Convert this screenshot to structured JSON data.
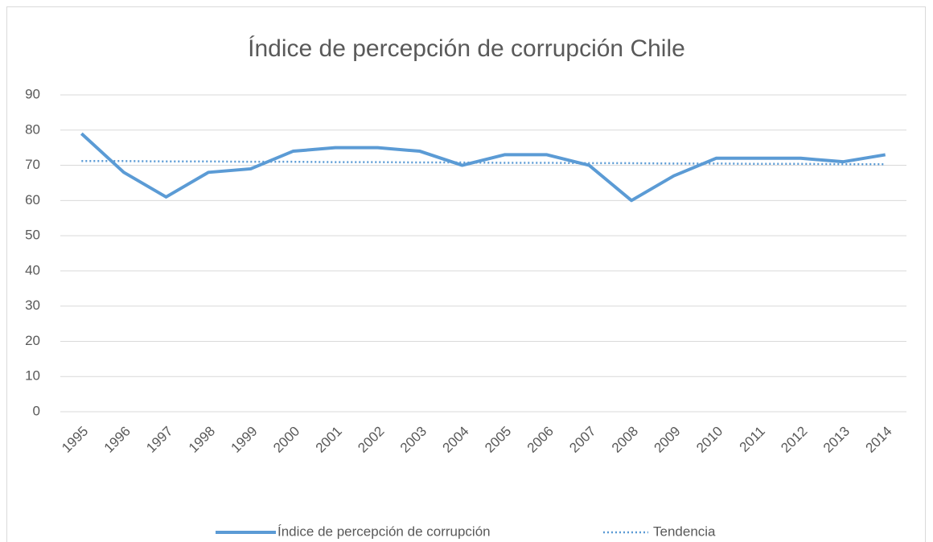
{
  "chart_data": {
    "type": "line",
    "title": "Índice de percepción de corrupción Chile",
    "categories": [
      "1995",
      "1996",
      "1997",
      "1998",
      "1999",
      "2000",
      "2001",
      "2002",
      "2003",
      "2004",
      "2005",
      "2006",
      "2007",
      "2008",
      "2009",
      "2010",
      "2011",
      "2012",
      "2013",
      "2014"
    ],
    "series": [
      {
        "name": "Índice de percepción de corrupción",
        "color": "#5b9bd5",
        "style": "solid",
        "values": [
          79,
          68,
          61,
          68,
          69,
          74,
          75,
          75,
          74,
          70,
          73,
          73,
          70,
          60,
          67,
          72,
          72,
          72,
          71,
          73
        ]
      },
      {
        "name": "Tendencia",
        "color": "#5b9bd5",
        "style": "dotted",
        "values": [
          71.2,
          71.2,
          71.1,
          71.1,
          71.0,
          71.0,
          70.9,
          70.9,
          70.8,
          70.8,
          70.7,
          70.7,
          70.6,
          70.6,
          70.5,
          70.5,
          70.4,
          70.4,
          70.3,
          70.3
        ]
      }
    ],
    "ylim": [
      0,
      90
    ],
    "yticks": [
      0,
      10,
      20,
      30,
      40,
      50,
      60,
      70,
      80,
      90
    ],
    "grid": true,
    "legend": "bottom"
  }
}
